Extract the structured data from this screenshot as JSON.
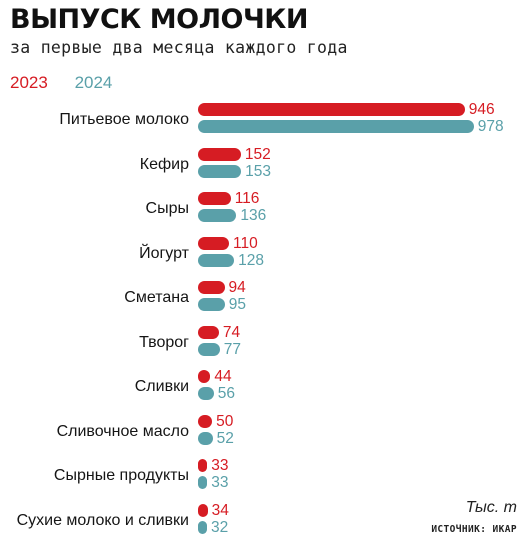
{
  "title": "ВЫПУСК МОЛОЧКИ",
  "subtitle": "за первые два месяца каждого года",
  "units": "Тыс. т",
  "source": "ИСТОЧНИК: ИКАР",
  "colors": {
    "y2023": "#d61c23",
    "y2024": "#5aa0a9"
  },
  "chart_data": {
    "type": "bar",
    "orientation": "horizontal",
    "title": "ВЫПУСК МОЛОЧКИ",
    "subtitle": "за первые два месяца каждого года",
    "unit": "Тыс. т",
    "categories": [
      "Питьевое молоко",
      "Кефир",
      "Сыры",
      "Йогурт",
      "Сметана",
      "Творог",
      "Сливки",
      "Сливочное масло",
      "Сырные продукты",
      "Сухие молоко и сливки"
    ],
    "series": [
      {
        "name": "2023",
        "values": [
          946,
          152,
          116,
          110,
          94,
          74,
          44,
          50,
          33,
          34
        ]
      },
      {
        "name": "2024",
        "values": [
          978,
          153,
          136,
          128,
          95,
          77,
          56,
          52,
          33,
          32
        ]
      }
    ],
    "legend": "top-left",
    "grid": false
  }
}
